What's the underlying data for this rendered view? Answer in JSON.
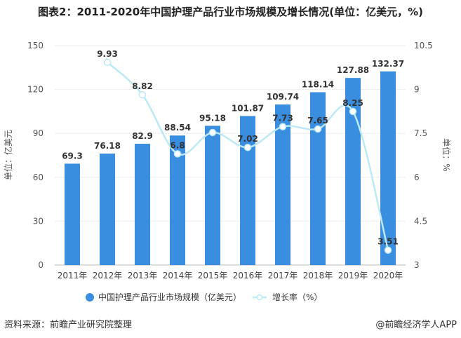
{
  "title": "图表2：2011-2020年中国护理产品行业市场规模及增长情况(单位：亿美元，%)",
  "chart_data": {
    "type": "bar+line",
    "categories": [
      "2011年",
      "2012年",
      "2013年",
      "2014年",
      "2015年",
      "2016年",
      "2017年",
      "2018年",
      "2019年",
      "2020年"
    ],
    "series": [
      {
        "name": "中国护理产品行业市场规模（亿美元）",
        "type": "bar",
        "axis": "left",
        "color": "#3A8EE0",
        "values": [
          69.3,
          76.18,
          82.9,
          88.54,
          95.18,
          101.87,
          109.74,
          118.14,
          127.88,
          132.37
        ],
        "labels": [
          "69.3",
          "76.18",
          "82.9",
          "88.54",
          "95.18",
          "101.87",
          "109.74",
          "118.14",
          "127.88",
          "132.37"
        ]
      },
      {
        "name": "增长率（%）",
        "type": "line",
        "axis": "right",
        "color": "#BDE9F7",
        "values": [
          null,
          9.93,
          8.82,
          6.8,
          7.53,
          7.02,
          7.73,
          7.65,
          8.25,
          3.51
        ],
        "labels": [
          "",
          "9.93",
          "8.82",
          "6.8",
          "",
          "7.02",
          "7.73",
          "7.65",
          "8.25",
          "3.51"
        ]
      }
    ],
    "ylabel": "单位：亿美元",
    "y2label": "单位：%",
    "ylim": [
      0,
      150
    ],
    "yticks": [
      "0",
      "30",
      "60",
      "90",
      "120",
      "150"
    ],
    "y2lim": [
      3,
      10.5
    ],
    "y2ticks": [
      "3",
      "4.5",
      "6",
      "7.5",
      "9",
      "10.5"
    ],
    "grid": true,
    "legend": "bottom"
  },
  "footer": {
    "source": "资料来源：前瞻产业研究院整理",
    "brand": "@前瞻经济学人APP"
  }
}
